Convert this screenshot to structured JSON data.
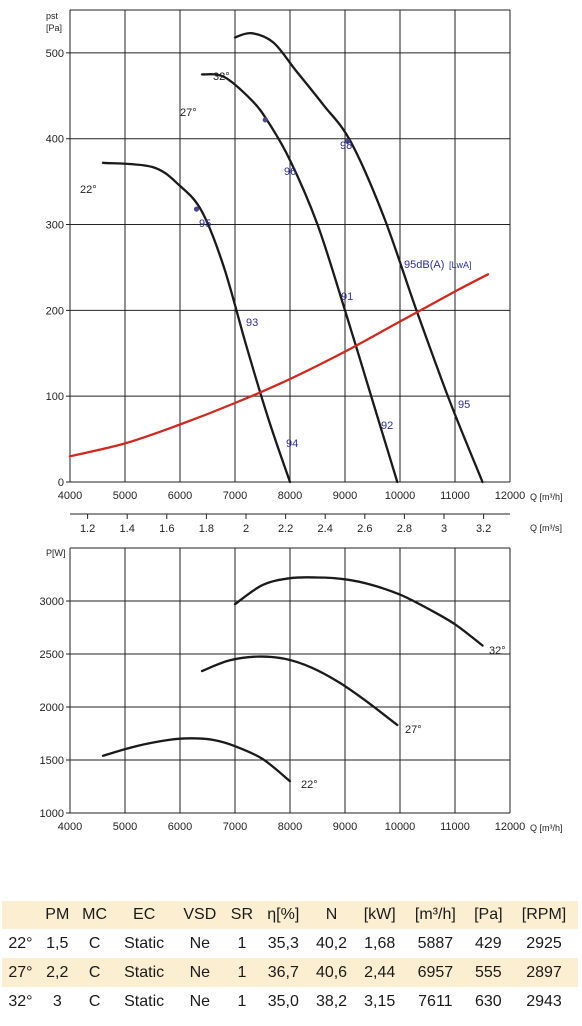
{
  "chart_data": [
    {
      "type": "line",
      "ylabel": "pst [Pa]",
      "xlabel": "Q [m³/h]",
      "xlabel2": "Q [m³/s]",
      "xlim": [
        4000,
        12000
      ],
      "ylim": [
        0,
        550
      ],
      "x_ticks": [
        "4000",
        "5000",
        "6000",
        "7000",
        "8000",
        "9000",
        "10000",
        "11000",
        "12000"
      ],
      "y_ticks": [
        "0",
        "100",
        "200",
        "300",
        "400",
        "500"
      ],
      "x2_ticks": [
        "1.2",
        "1.4",
        "1.6",
        "1.8",
        "2",
        "2.2",
        "2.4",
        "2.6",
        "2.8",
        "3",
        "3.2"
      ],
      "grid": true,
      "series": [
        {
          "name": "22°",
          "color": "#1a1a1a",
          "x": [
            4600,
            5500,
            6000,
            6400,
            6800,
            7200,
            7600,
            8000
          ],
          "y": [
            372,
            367,
            345,
            315,
            250,
            160,
            75,
            0
          ]
        },
        {
          "name": "27°",
          "color": "#1a1a1a",
          "x": [
            6400,
            6800,
            7300,
            7600,
            8000,
            8500,
            9000,
            9500,
            9950
          ],
          "y": [
            475,
            472,
            445,
            420,
            375,
            300,
            200,
            95,
            0
          ]
        },
        {
          "name": "32°",
          "color": "#1a1a1a",
          "x": [
            7000,
            7300,
            7700,
            8100,
            8600,
            9100,
            9700,
            10300,
            10900,
            11500
          ],
          "y": [
            518,
            523,
            512,
            480,
            440,
            397,
            310,
            200,
            95,
            0
          ]
        },
        {
          "color": "#cc2a20",
          "x": [
            4000,
            5000,
            6000,
            7000,
            8000,
            9000,
            10000,
            11000,
            11600
          ],
          "y": [
            30,
            45,
            67,
            92,
            120,
            152,
            187,
            222,
            242
          ]
        }
      ],
      "markers": [
        {
          "x": 6300,
          "y": 318
        },
        {
          "x": 7550,
          "y": 422
        },
        {
          "x": 9050,
          "y": 397
        }
      ],
      "curve_labels": [
        "22°",
        "27°",
        "32°"
      ],
      "annotations": [
        "95",
        "93",
        "94",
        "96",
        "91",
        "92",
        "98",
        "95dB(A)",
        "[LwA]",
        "95"
      ]
    },
    {
      "type": "line",
      "ylabel": "P[W]",
      "xlabel": "Q [m³/h]",
      "xlim": [
        4000,
        12000
      ],
      "ylim": [
        1000,
        3500
      ],
      "x_ticks": [
        "4000",
        "5000",
        "6000",
        "7000",
        "8000",
        "9000",
        "10000",
        "11000",
        "12000"
      ],
      "y_ticks": [
        "1000",
        "1500",
        "2000",
        "2500",
        "3000"
      ],
      "grid": true,
      "series": [
        {
          "name": "22°",
          "color": "#1a1a1a",
          "x": [
            4600,
            5200,
            5800,
            6200,
            6600,
            7000,
            7500,
            8000
          ],
          "y": [
            1540,
            1630,
            1690,
            1705,
            1690,
            1630,
            1510,
            1300
          ]
        },
        {
          "name": "27°",
          "color": "#1a1a1a",
          "x": [
            6400,
            6900,
            7400,
            7900,
            8400,
            8900,
            9400,
            9950
          ],
          "y": [
            2340,
            2440,
            2475,
            2455,
            2370,
            2230,
            2050,
            1830
          ]
        },
        {
          "name": "32°",
          "color": "#1a1a1a",
          "x": [
            7000,
            7500,
            8000,
            8500,
            9000,
            9500,
            10000,
            10500,
            11000,
            11500
          ],
          "y": [
            2970,
            3150,
            3215,
            3222,
            3205,
            3150,
            3060,
            2930,
            2780,
            2580
          ]
        }
      ],
      "curve_labels": [
        "22°",
        "27°",
        "32°"
      ]
    }
  ],
  "table": {
    "headers": [
      "",
      "PM",
      "MC",
      "EC",
      "VSD",
      "SR",
      "η[%]",
      "N",
      "[kW]",
      "[m³/h]",
      "[Pa]",
      "[RPM]"
    ],
    "rows": [
      [
        "22°",
        "1,5",
        "C",
        "Static",
        "Ne",
        "1",
        "35,3",
        "40,2",
        "1,68",
        "5887",
        "429",
        "2925"
      ],
      [
        "27°",
        "2,2",
        "C",
        "Static",
        "Ne",
        "1",
        "36,7",
        "40,6",
        "2,44",
        "6957",
        "555",
        "2897"
      ],
      [
        "32°",
        "3",
        "C",
        "Static",
        "Ne",
        "1",
        "35,0",
        "38,2",
        "3,15",
        "7611",
        "630",
        "2943"
      ]
    ]
  }
}
